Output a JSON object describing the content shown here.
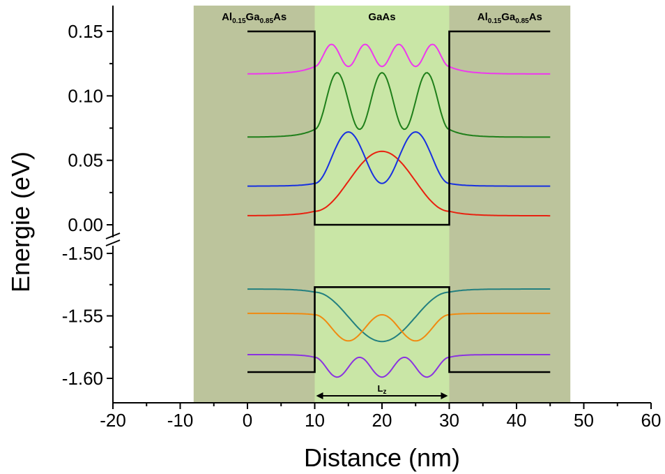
{
  "chart_data": {
    "type": "line",
    "title": "",
    "xlabel": "Distance (nm)",
    "ylabel": "Energie (eV)",
    "xlim": [
      -20,
      60
    ],
    "ylim_upper": [
      -0.01,
      0.16
    ],
    "ylim_lower": [
      -1.62,
      -1.5
    ],
    "axis_break": "between 0.00 and -1.50",
    "x_ticks": [
      "-20",
      "-10",
      "0",
      "10",
      "20",
      "30",
      "40",
      "50",
      "60"
    ],
    "y_ticks_upper": [
      "0.00",
      "0.05",
      "0.10",
      "0.15"
    ],
    "y_ticks_lower": [
      "-1.50",
      "-1.55",
      "-1.60"
    ],
    "colors": {
      "barrier_region": "#bcc49c",
      "well_region": "#c9e6a6",
      "potential": "#000000",
      "E1": "#e8210f",
      "E2": "#1730e0",
      "E3": "#1f7f1a",
      "E4": "#ee38ee",
      "H1": "#227f7f",
      "H2": "#f08a10",
      "H3": "#8a32e0"
    },
    "regions": [
      {
        "label_main": "Al",
        "sub1": "0.15",
        "label_mid": "Ga",
        "sub2": "0.85",
        "label_end": "As",
        "x": [
          -8,
          10
        ],
        "type": "barrier"
      },
      {
        "label_main": "GaAs",
        "sub1": "",
        "label_mid": "",
        "sub2": "",
        "label_end": "",
        "x": [
          10,
          30
        ],
        "type": "well"
      },
      {
        "label_main": "Al",
        "sub1": "0.15",
        "label_mid": "Ga",
        "sub2": "0.85",
        "label_end": "As",
        "x": [
          30,
          48
        ],
        "type": "barrier"
      }
    ],
    "potential_conduction": [
      [
        0,
        0.15
      ],
      [
        10,
        0.15
      ],
      [
        10,
        0.0
      ],
      [
        30,
        0.0
      ],
      [
        30,
        0.15
      ],
      [
        45,
        0.15
      ]
    ],
    "potential_valence": [
      [
        0,
        -1.595
      ],
      [
        10,
        -1.595
      ],
      [
        10,
        -1.527
      ],
      [
        30,
        -1.527
      ],
      [
        30,
        -1.595
      ],
      [
        45,
        -1.595
      ]
    ],
    "series": [
      {
        "key": "E1",
        "panel": "upper",
        "base": 0.007,
        "amp": 0.05,
        "nodes": 1,
        "kind": "electron"
      },
      {
        "key": "E2",
        "panel": "upper",
        "base": 0.03,
        "amp": 0.042,
        "nodes": 2,
        "kind": "electron"
      },
      {
        "key": "E3",
        "panel": "upper",
        "base": 0.068,
        "amp": 0.05,
        "nodes": 3,
        "kind": "electron"
      },
      {
        "key": "E4",
        "panel": "upper",
        "base": 0.117,
        "amp": 0.023,
        "nodes": 4,
        "kind": "electron"
      },
      {
        "key": "H1",
        "panel": "lower",
        "base": -1.5285,
        "amp": -0.042,
        "nodes": 1,
        "kind": "hole"
      },
      {
        "key": "H2",
        "panel": "lower",
        "base": -1.548,
        "amp": -0.022,
        "nodes": 2,
        "kind": "hole"
      },
      {
        "key": "H3",
        "panel": "lower",
        "base": -1.581,
        "amp": -0.018,
        "nodes": 3,
        "kind": "hole"
      }
    ],
    "annotation": {
      "text": "L",
      "sub": "z",
      "x_from": 10,
      "x_to": 30
    }
  }
}
